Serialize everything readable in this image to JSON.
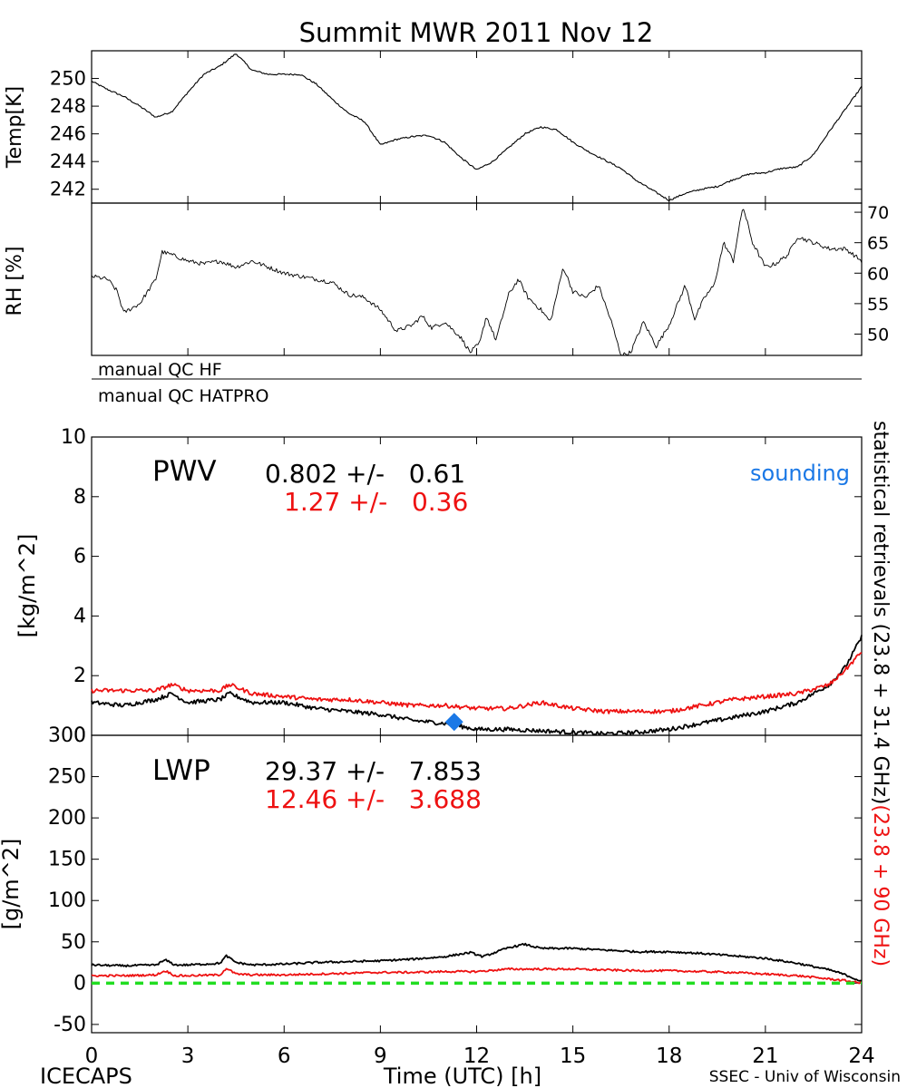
{
  "title": "Summit MWR 2011 Nov 12",
  "footer": {
    "left": "ICECAPS",
    "center": "Time (UTC) [h]",
    "right": "SSEC - Univ of Wisconsin"
  },
  "qc": {
    "hf": "manual QC HF",
    "hatpro": "manual QC HATPRO"
  },
  "side_label": {
    "black": "statistical retrievals (23.8 + 31.4 GHz)",
    "red": "(23.8 + 90 GHz)"
  },
  "pwv": {
    "label": "PWV",
    "black_stat": "0.802 +/-   0.61",
    "red_stat": "1.27 +/-   0.36",
    "sounding_label": "sounding"
  },
  "lwp": {
    "label": "LWP",
    "black_stat": "29.37 +/-   7.853",
    "red_stat": "12.46 +/-   3.688"
  },
  "colors": {
    "red": "#ee1111",
    "blue": "#1a78e6",
    "green": "#22dd22",
    "black": "#000000"
  },
  "chart_data": [
    {
      "id": "temp",
      "type": "line",
      "ylabel": "Temp[K]",
      "xlim": [
        0,
        24
      ],
      "ylim": [
        241.0,
        252.0
      ],
      "yticks": [
        242,
        244,
        246,
        248,
        250
      ],
      "series": [
        {
          "name": "Temp",
          "color": "#000000",
          "x": [
            0,
            0.5,
            1,
            1.5,
            2,
            2.5,
            3,
            3.5,
            4,
            4.5,
            5,
            5.5,
            6,
            6.5,
            7,
            7.5,
            8,
            8.5,
            9,
            9.5,
            10,
            10.5,
            11,
            11.5,
            12,
            12.5,
            13,
            13.5,
            14,
            14.5,
            15,
            15.5,
            16,
            16.5,
            17,
            17.5,
            18,
            18.5,
            19,
            19.5,
            20,
            20.5,
            21,
            21.5,
            22,
            22.5,
            23,
            23.5,
            24
          ],
          "y": [
            249.8,
            249.2,
            248.7,
            248.0,
            247.2,
            247.6,
            249.0,
            250.3,
            250.9,
            251.8,
            250.6,
            250.3,
            250.3,
            250.3,
            249.6,
            248.5,
            247.5,
            246.9,
            245.2,
            245.6,
            245.8,
            245.9,
            245.4,
            244.3,
            243.4,
            244.0,
            245.0,
            246.0,
            246.5,
            246.3,
            245.4,
            244.7,
            244.1,
            243.5,
            242.6,
            241.9,
            241.2,
            241.7,
            242.0,
            242.2,
            242.7,
            243.1,
            243.2,
            243.5,
            243.6,
            244.5,
            246.2,
            247.8,
            249.4
          ]
        }
      ]
    },
    {
      "id": "rh",
      "type": "line",
      "ylabel": "RH [%]",
      "xlim": [
        0,
        24
      ],
      "ylim": [
        46.5,
        71.5
      ],
      "yticks": [
        50,
        55,
        60,
        65,
        70
      ],
      "series": [
        {
          "name": "RH",
          "color": "#000000",
          "x": [
            0,
            0.5,
            0.8,
            1.0,
            1.5,
            2.0,
            2.2,
            2.5,
            3,
            3.5,
            4,
            4.5,
            5,
            5.5,
            6,
            6.5,
            7,
            7.5,
            8,
            8.5,
            9,
            9.5,
            10,
            10.3,
            10.6,
            11,
            11.5,
            11.8,
            12.1,
            12.3,
            12.6,
            13,
            13.3,
            13.6,
            14,
            14.3,
            14.7,
            15.0,
            15.4,
            15.8,
            16.2,
            16.5,
            16.8,
            17.2,
            17.6,
            18.0,
            18.5,
            18.8,
            19.1,
            19.4,
            19.7,
            20.0,
            20.3,
            20.6,
            21.0,
            21.3,
            21.7,
            22.0,
            22.5,
            23,
            23.5,
            24
          ],
          "y": [
            59.5,
            59.0,
            57.0,
            53.5,
            55.0,
            59.0,
            63.5,
            63.0,
            62.0,
            61.5,
            62.0,
            61.0,
            62.0,
            61.0,
            60.0,
            59.5,
            59.0,
            58.5,
            56.5,
            56.0,
            54.0,
            50.5,
            51.5,
            53.0,
            51.0,
            52.0,
            49.5,
            47.0,
            48.5,
            53.0,
            49.0,
            56.5,
            59.0,
            56.0,
            54.0,
            52.0,
            61.0,
            57.0,
            56.0,
            58.0,
            52.0,
            46.5,
            47.0,
            52.0,
            48.0,
            51.5,
            58.0,
            52.5,
            56.0,
            58.0,
            65.0,
            62.0,
            71.0,
            65.0,
            61.0,
            61.5,
            63.0,
            66.0,
            65.0,
            64.0,
            64.0,
            62.0
          ]
        }
      ]
    },
    {
      "id": "pwv",
      "type": "line",
      "ylabel": "[kg/m^2]",
      "xlim": [
        0,
        24
      ],
      "ylim": [
        0,
        10
      ],
      "xticks": [
        0,
        3,
        6,
        9,
        12,
        15,
        18,
        21,
        24
      ],
      "yticks": [
        0,
        2,
        4,
        6,
        8,
        10
      ],
      "series": [
        {
          "name": "23.8 + 31.4 GHz",
          "color": "#000000",
          "x": [
            0,
            1,
            2,
            2.5,
            3,
            4,
            4.3,
            5,
            6,
            7,
            8,
            9,
            10,
            11,
            11.5,
            12,
            13,
            14,
            15,
            16,
            17,
            18,
            19,
            20,
            21,
            22,
            23,
            23.5,
            24
          ],
          "y": [
            1.1,
            1.0,
            1.2,
            1.4,
            1.1,
            1.2,
            1.4,
            1.1,
            1.1,
            0.9,
            0.8,
            0.7,
            0.5,
            0.4,
            0.3,
            0.2,
            0.2,
            0.15,
            0.1,
            0.05,
            0.1,
            0.2,
            0.4,
            0.6,
            0.8,
            1.1,
            1.7,
            2.3,
            3.3
          ]
        },
        {
          "name": "23.8 + 90 GHz",
          "color": "#ee1111",
          "x": [
            0,
            1,
            2,
            2.5,
            3,
            4,
            4.3,
            5,
            6,
            7,
            8,
            9,
            10,
            11,
            12,
            13,
            14,
            15,
            16,
            17,
            18,
            19,
            20,
            21,
            22,
            23,
            23.5,
            24
          ],
          "y": [
            1.5,
            1.5,
            1.5,
            1.7,
            1.5,
            1.5,
            1.7,
            1.4,
            1.3,
            1.2,
            1.2,
            1.1,
            1.0,
            1.0,
            0.9,
            0.9,
            1.1,
            0.9,
            0.8,
            0.8,
            0.8,
            1.0,
            1.2,
            1.3,
            1.4,
            1.7,
            2.2,
            2.8
          ]
        }
      ],
      "sounding": {
        "x": 11.3,
        "y": 0.45,
        "color": "#1a78e6"
      }
    },
    {
      "id": "lwp",
      "type": "line",
      "ylabel": "[g/m^2]",
      "xlabel": "Time (UTC) [h]",
      "xlim": [
        0,
        24
      ],
      "ylim": [
        -60,
        300
      ],
      "xticks": [
        0,
        3,
        6,
        9,
        12,
        15,
        18,
        21,
        24
      ],
      "yticks": [
        -50,
        0,
        50,
        100,
        150,
        200,
        250,
        300
      ],
      "series": [
        {
          "name": "23.8 + 31.4 GHz",
          "color": "#000000",
          "x": [
            0,
            1,
            2,
            2.3,
            2.6,
            3,
            4,
            4.2,
            4.5,
            5,
            6,
            7,
            8,
            9,
            10,
            11,
            11.8,
            12.2,
            13,
            13.5,
            14,
            15,
            16,
            17,
            18,
            19,
            20,
            21,
            22,
            23,
            23.5,
            24
          ],
          "y": [
            22,
            21,
            22,
            28,
            22,
            22,
            24,
            33,
            25,
            22,
            23,
            25,
            26,
            27,
            29,
            32,
            37,
            32,
            43,
            47,
            42,
            42,
            40,
            38,
            38,
            36,
            33,
            30,
            24,
            16,
            10,
            2
          ]
        },
        {
          "name": "23.8 + 90 GHz",
          "color": "#ee1111",
          "x": [
            0,
            1,
            2,
            2.3,
            2.6,
            3,
            4,
            4.2,
            4.5,
            5,
            6,
            7,
            8,
            9,
            10,
            11,
            12,
            13,
            14,
            15,
            16,
            17,
            18,
            19,
            20,
            21,
            22,
            23,
            23.5,
            24
          ],
          "y": [
            9,
            9,
            10,
            15,
            9,
            9,
            10,
            18,
            11,
            10,
            10,
            11,
            12,
            13,
            13,
            14,
            14,
            17,
            17,
            17,
            16,
            15,
            15,
            14,
            13,
            11,
            9,
            5,
            3,
            0
          ]
        },
        {
          "name": "zero",
          "color": "#22dd22",
          "dashed": true,
          "x": [
            0,
            24
          ],
          "y": [
            0,
            0
          ]
        }
      ]
    }
  ]
}
